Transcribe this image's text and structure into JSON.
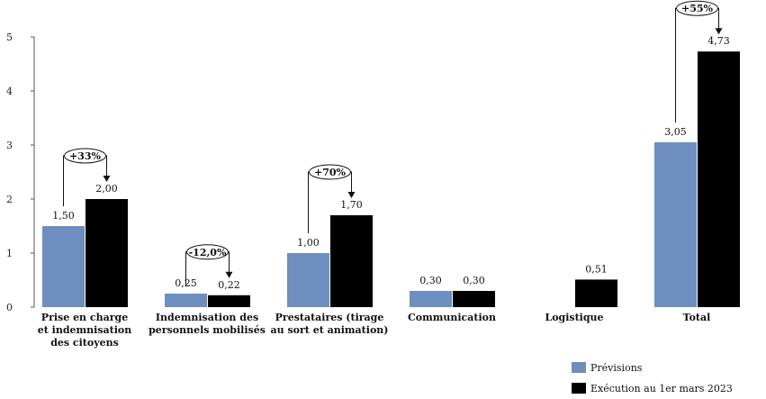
{
  "chart_data": {
    "type": "bar",
    "categories": [
      [
        "Prise en charge",
        "et indemnisation",
        "des citoyens"
      ],
      [
        "Indemnisation des",
        "personnels mobilisés"
      ],
      [
        "Prestataires (tirage",
        "au sort et animation)"
      ],
      [
        "Communication"
      ],
      [
        "Logistique"
      ],
      [
        "Total"
      ]
    ],
    "series": [
      {
        "name": "Prévisions",
        "color": "#6d8ebf",
        "values": [
          1.5,
          0.25,
          1.0,
          0.3,
          null,
          3.05
        ],
        "labels": [
          "1,50",
          "0,25",
          "1,00",
          "0,30",
          "",
          "3,05"
        ]
      },
      {
        "name": "Exécution au 1er mars 2023",
        "color": "#000000",
        "values": [
          2.0,
          0.22,
          1.7,
          0.3,
          0.51,
          4.73
        ],
        "labels": [
          "2,00",
          "0,22",
          "1,70",
          "0,30",
          "0,51",
          "4,73"
        ]
      }
    ],
    "ylim": [
      0,
      5
    ],
    "yticks": [
      "0",
      "1",
      "2",
      "3",
      "4",
      "5"
    ],
    "legend_position": "bottom-right",
    "annotations": [
      {
        "category_index": 0,
        "text": "+33%"
      },
      {
        "category_index": 1,
        "text": "-12,0%"
      },
      {
        "category_index": 2,
        "text": "+70%"
      },
      {
        "category_index": 5,
        "text": "+55%"
      }
    ]
  }
}
